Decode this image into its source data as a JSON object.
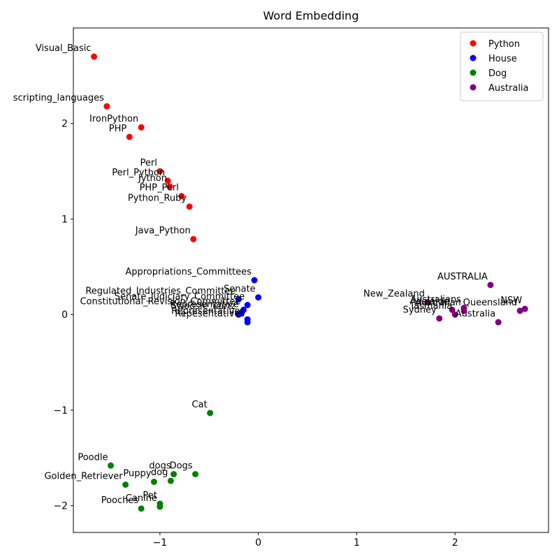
{
  "chart_data": {
    "type": "scatter",
    "title": "Word Embedding",
    "xlabel": "",
    "ylabel": "",
    "xlim": [
      -1.88,
      2.95
    ],
    "ylim": [
      -2.28,
      3.0
    ],
    "xticks": [
      -1,
      0,
      1,
      2
    ],
    "yticks": [
      -2,
      -1,
      0,
      1,
      2
    ],
    "grid": false,
    "legend_position": "top-right",
    "series": [
      {
        "name": "Python",
        "color": "#ff0000",
        "points": [
          {
            "label": "Visual_Basic",
            "x": -1.67,
            "y": 2.7
          },
          {
            "label": "scripting_languages",
            "x": -1.54,
            "y": 2.18
          },
          {
            "label": "IronPython",
            "x": -1.19,
            "y": 1.96
          },
          {
            "label": "PHP",
            "x": -1.31,
            "y": 1.86
          },
          {
            "label": "Perl",
            "x": -1.0,
            "y": 1.5
          },
          {
            "label": "Perl_Python",
            "x": -0.92,
            "y": 1.4
          },
          {
            "label": "Jython",
            "x": -0.9,
            "y": 1.34
          },
          {
            "label": "PHP_Perl",
            "x": -0.78,
            "y": 1.24
          },
          {
            "label": "Python_Ruby",
            "x": -0.7,
            "y": 1.13
          },
          {
            "label": "Java_Python",
            "x": -0.66,
            "y": 0.79
          }
        ]
      },
      {
        "name": "House",
        "color": "#0000ff",
        "points": [
          {
            "label": "Appropriations_Committees",
            "x": -0.04,
            "y": 0.36
          },
          {
            "label": "Senate",
            "x": 0.0,
            "y": 0.18
          },
          {
            "label": "Regulated_Industries_Committee",
            "x": -0.2,
            "y": 0.16
          },
          {
            "label": "Senate_Judiciary_Committee",
            "x": -0.11,
            "y": 0.1
          },
          {
            "label": "Constitutional_Revision_Committee",
            "x": -0.15,
            "y": 0.05
          },
          {
            "label": "Representative",
            "x": -0.17,
            "y": 0.02
          },
          {
            "label": "Swoosie_Kurtz",
            "x": -0.2,
            "y": 0.0
          },
          {
            "label": "Representatives",
            "x": -0.11,
            "y": -0.05
          },
          {
            "label": "Repesentatives",
            "x": -0.11,
            "y": -0.08
          }
        ]
      },
      {
        "name": "Dog",
        "color": "#008000",
        "points": [
          {
            "label": "Cat",
            "x": -0.49,
            "y": -1.03
          },
          {
            "label": "Poodle",
            "x": -1.5,
            "y": -1.58
          },
          {
            "label": "Golden_Retriever",
            "x": -1.35,
            "y": -1.78
          },
          {
            "label": "Puppy",
            "x": -1.06,
            "y": -1.75
          },
          {
            "label": "dogs",
            "x": -0.86,
            "y": -1.67
          },
          {
            "label": "Dogs",
            "x": -0.64,
            "y": -1.67
          },
          {
            "label": "dog",
            "x": -0.89,
            "y": -1.74
          },
          {
            "label": "Pet",
            "x": -1.0,
            "y": -1.98
          },
          {
            "label": "Canine",
            "x": -1.0,
            "y": -2.01
          },
          {
            "label": "Pooches",
            "x": -1.19,
            "y": -2.03
          }
        ]
      },
      {
        "name": "Australia",
        "color": "#800080",
        "points": [
          {
            "label": "AUSTRALIA",
            "x": 2.36,
            "y": 0.31
          },
          {
            "label": "New_Zealand",
            "x": 1.72,
            "y": 0.13
          },
          {
            "label": "NSW",
            "x": 2.71,
            "y": 0.06
          },
          {
            "label": "Queensland",
            "x": 2.66,
            "y": 0.04
          },
          {
            "label": "Australians",
            "x": 2.09,
            "y": 0.07
          },
          {
            "label": "Australian",
            "x": 2.09,
            "y": 0.04
          },
          {
            "label": "Adelaide",
            "x": 1.97,
            "y": 0.05
          },
          {
            "label": "Tasmania",
            "x": 2.0,
            "y": 0.0
          },
          {
            "label": "Sydney",
            "x": 1.84,
            "y": -0.04
          },
          {
            "label": "Australia",
            "x": 2.44,
            "y": -0.08
          }
        ]
      }
    ]
  }
}
